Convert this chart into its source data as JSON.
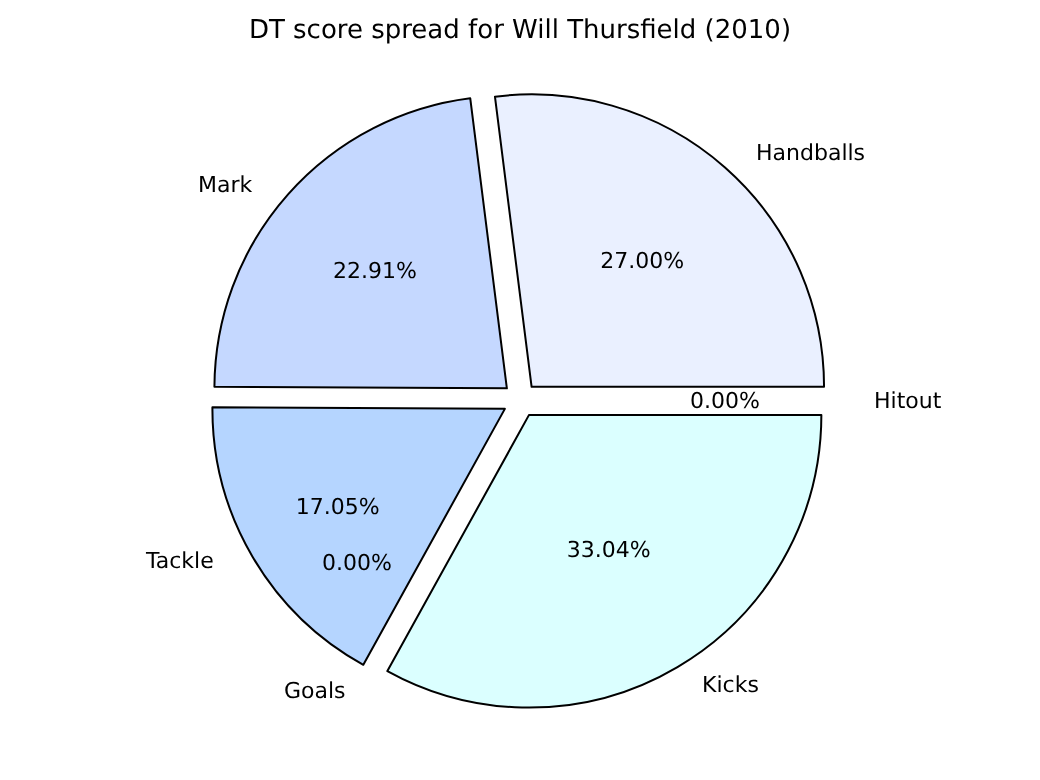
{
  "chart_data": {
    "type": "pie",
    "title": "DT score spread for Will Thursfield (2010)",
    "categories": [
      "Handballs",
      "Mark",
      "Tackle",
      "Goals",
      "Kicks",
      "Hitout"
    ],
    "values": [
      27.0,
      22.91,
      17.05,
      0.0,
      33.04,
      0.0
    ],
    "value_labels": [
      "27.00%",
      "22.91%",
      "17.05%",
      "0.00%",
      "33.04%",
      "0.00%"
    ],
    "colors": [
      "#eaf0ff",
      "#c5d8ff",
      "#b5d5ff",
      "#c0e0ff",
      "#dbffff",
      "#f0f0ff"
    ],
    "legend": false
  }
}
